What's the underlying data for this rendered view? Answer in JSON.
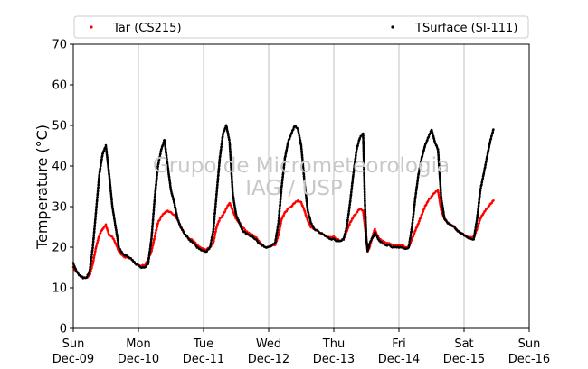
{
  "chart_data": {
    "type": "scatter",
    "ylabel": "Temperature (°C)",
    "xlabel": "",
    "ylim": [
      0,
      70
    ],
    "yticks": [
      0,
      10,
      20,
      30,
      40,
      50,
      60,
      70
    ],
    "xlim": [
      0,
      7
    ],
    "xticks": [
      {
        "x": 0,
        "line1": "Sun",
        "line2": "Dec-09"
      },
      {
        "x": 1,
        "line1": "Mon",
        "line2": "Dec-10"
      },
      {
        "x": 2,
        "line1": "Tue",
        "line2": "Dec-11"
      },
      {
        "x": 3,
        "line1": "Wed",
        "line2": "Dec-12"
      },
      {
        "x": 4,
        "line1": "Thu",
        "line2": "Dec-13"
      },
      {
        "x": 5,
        "line1": "Fri",
        "line2": "Dec-14"
      },
      {
        "x": 6,
        "line1": "Sat",
        "line2": "Dec-15"
      },
      {
        "x": 7,
        "line1": "Sun",
        "line2": "Dec-16"
      }
    ],
    "grid": "vertical",
    "legend_position": "top",
    "watermark": [
      "Grupo de Micrometeorologia",
      "IAG / USP"
    ],
    "series": [
      {
        "name": "Tar (CS215)",
        "color": "#ff0000",
        "points": [
          [
            0.0,
            15
          ],
          [
            0.05,
            14
          ],
          [
            0.1,
            13
          ],
          [
            0.15,
            12.5
          ],
          [
            0.2,
            12.5
          ],
          [
            0.25,
            13
          ],
          [
            0.3,
            16
          ],
          [
            0.35,
            20
          ],
          [
            0.4,
            23
          ],
          [
            0.45,
            24.5
          ],
          [
            0.5,
            25.5
          ],
          [
            0.55,
            23
          ],
          [
            0.6,
            22.5
          ],
          [
            0.65,
            21
          ],
          [
            0.7,
            19
          ],
          [
            0.75,
            18
          ],
          [
            0.8,
            17.5
          ],
          [
            0.85,
            17.5
          ],
          [
            0.9,
            17
          ],
          [
            0.95,
            16
          ],
          [
            1.0,
            15.5
          ],
          [
            1.05,
            15.5
          ],
          [
            1.1,
            15.5
          ],
          [
            1.15,
            17
          ],
          [
            1.2,
            19
          ],
          [
            1.25,
            22.5
          ],
          [
            1.3,
            26
          ],
          [
            1.35,
            27.5
          ],
          [
            1.4,
            28.5
          ],
          [
            1.45,
            29
          ],
          [
            1.5,
            28.5
          ],
          [
            1.55,
            28
          ],
          [
            1.6,
            27
          ],
          [
            1.65,
            25
          ],
          [
            1.7,
            23.5
          ],
          [
            1.75,
            22.5
          ],
          [
            1.8,
            22
          ],
          [
            1.85,
            21.5
          ],
          [
            1.9,
            20.5
          ],
          [
            1.95,
            20
          ],
          [
            2.0,
            19.5
          ],
          [
            2.05,
            19.5
          ],
          [
            2.1,
            20
          ],
          [
            2.15,
            21
          ],
          [
            2.2,
            25
          ],
          [
            2.25,
            27
          ],
          [
            2.3,
            28
          ],
          [
            2.35,
            29.5
          ],
          [
            2.4,
            31
          ],
          [
            2.45,
            29
          ],
          [
            2.5,
            27
          ],
          [
            2.55,
            26
          ],
          [
            2.6,
            25
          ],
          [
            2.65,
            24
          ],
          [
            2.7,
            23.5
          ],
          [
            2.75,
            23
          ],
          [
            2.8,
            22.5
          ],
          [
            2.85,
            21.5
          ],
          [
            2.9,
            20.5
          ],
          [
            2.95,
            20
          ],
          [
            3.0,
            20
          ],
          [
            3.05,
            20.5
          ],
          [
            3.1,
            20.5
          ],
          [
            3.15,
            23
          ],
          [
            3.2,
            27
          ],
          [
            3.25,
            28.5
          ],
          [
            3.3,
            29.5
          ],
          [
            3.35,
            30
          ],
          [
            3.4,
            31
          ],
          [
            3.45,
            31.5
          ],
          [
            3.5,
            31
          ],
          [
            3.55,
            29
          ],
          [
            3.6,
            26.5
          ],
          [
            3.65,
            25
          ],
          [
            3.7,
            24.5
          ],
          [
            3.75,
            24
          ],
          [
            3.8,
            23.5
          ],
          [
            3.85,
            23
          ],
          [
            3.9,
            22.5
          ],
          [
            3.95,
            22.5
          ],
          [
            4.0,
            22.5
          ],
          [
            4.05,
            22
          ],
          [
            4.1,
            21.5
          ],
          [
            4.15,
            22
          ],
          [
            4.2,
            24
          ],
          [
            4.25,
            26
          ],
          [
            4.3,
            27.5
          ],
          [
            4.35,
            28.5
          ],
          [
            4.4,
            29.5
          ],
          [
            4.45,
            29
          ],
          [
            4.5,
            22
          ],
          [
            4.52,
            19
          ],
          [
            4.55,
            20
          ],
          [
            4.6,
            23
          ],
          [
            4.63,
            24.5
          ],
          [
            4.65,
            23.5
          ],
          [
            4.7,
            22
          ],
          [
            4.75,
            21.5
          ],
          [
            4.8,
            21
          ],
          [
            4.85,
            21
          ],
          [
            4.9,
            20.5
          ],
          [
            4.95,
            20.5
          ],
          [
            5.0,
            20.5
          ],
          [
            5.05,
            20.5
          ],
          [
            5.1,
            20
          ],
          [
            5.15,
            20
          ],
          [
            5.2,
            22
          ],
          [
            5.25,
            24
          ],
          [
            5.3,
            26
          ],
          [
            5.35,
            28
          ],
          [
            5.4,
            30
          ],
          [
            5.45,
            31.5
          ],
          [
            5.5,
            32.5
          ],
          [
            5.55,
            33.5
          ],
          [
            5.6,
            34
          ],
          [
            5.65,
            29
          ],
          [
            5.7,
            27
          ],
          [
            5.75,
            26
          ],
          [
            5.8,
            25.5
          ],
          [
            5.85,
            25
          ],
          [
            5.9,
            24
          ],
          [
            5.95,
            23.5
          ],
          [
            6.0,
            23
          ],
          [
            6.05,
            22.5
          ],
          [
            6.1,
            22.5
          ],
          [
            6.15,
            22.5
          ],
          [
            6.2,
            24.5
          ],
          [
            6.25,
            27
          ],
          [
            6.3,
            28.5
          ],
          [
            6.35,
            29.5
          ],
          [
            6.4,
            30.5
          ],
          [
            6.45,
            31.5
          ]
        ]
      },
      {
        "name": "TSurface (SI-111)",
        "color": "#000000",
        "points": [
          [
            0.0,
            16
          ],
          [
            0.05,
            14
          ],
          [
            0.1,
            13
          ],
          [
            0.15,
            12.5
          ],
          [
            0.2,
            12.5
          ],
          [
            0.25,
            14
          ],
          [
            0.3,
            20
          ],
          [
            0.35,
            29
          ],
          [
            0.4,
            38
          ],
          [
            0.45,
            43
          ],
          [
            0.5,
            45
          ],
          [
            0.55,
            38
          ],
          [
            0.6,
            30
          ],
          [
            0.65,
            25
          ],
          [
            0.7,
            20
          ],
          [
            0.75,
            18.5
          ],
          [
            0.8,
            18
          ],
          [
            0.85,
            17.5
          ],
          [
            0.9,
            17
          ],
          [
            0.95,
            16
          ],
          [
            1.0,
            15.5
          ],
          [
            1.05,
            15
          ],
          [
            1.1,
            15
          ],
          [
            1.15,
            16
          ],
          [
            1.2,
            22
          ],
          [
            1.25,
            32
          ],
          [
            1.3,
            40
          ],
          [
            1.35,
            44
          ],
          [
            1.4,
            46.5
          ],
          [
            1.45,
            40
          ],
          [
            1.5,
            34
          ],
          [
            1.55,
            31
          ],
          [
            1.6,
            27
          ],
          [
            1.65,
            25
          ],
          [
            1.7,
            23.5
          ],
          [
            1.75,
            22.5
          ],
          [
            1.8,
            21.5
          ],
          [
            1.85,
            21
          ],
          [
            1.9,
            20
          ],
          [
            1.95,
            19.5
          ],
          [
            2.0,
            19
          ],
          [
            2.05,
            19
          ],
          [
            2.1,
            20
          ],
          [
            2.15,
            24
          ],
          [
            2.2,
            33
          ],
          [
            2.25,
            42
          ],
          [
            2.3,
            48
          ],
          [
            2.35,
            50
          ],
          [
            2.4,
            46
          ],
          [
            2.45,
            33
          ],
          [
            2.5,
            28
          ],
          [
            2.55,
            26
          ],
          [
            2.6,
            24
          ],
          [
            2.65,
            23.5
          ],
          [
            2.7,
            23
          ],
          [
            2.75,
            22.5
          ],
          [
            2.8,
            22
          ],
          [
            2.85,
            21
          ],
          [
            2.9,
            20.5
          ],
          [
            2.95,
            20
          ],
          [
            3.0,
            20
          ],
          [
            3.05,
            20.5
          ],
          [
            3.1,
            21
          ],
          [
            3.15,
            26
          ],
          [
            3.2,
            35
          ],
          [
            3.25,
            42
          ],
          [
            3.3,
            46
          ],
          [
            3.35,
            48
          ],
          [
            3.4,
            50
          ],
          [
            3.45,
            49
          ],
          [
            3.5,
            45
          ],
          [
            3.55,
            36
          ],
          [
            3.6,
            29
          ],
          [
            3.65,
            26
          ],
          [
            3.7,
            24.5
          ],
          [
            3.75,
            24
          ],
          [
            3.8,
            23.5
          ],
          [
            3.85,
            23
          ],
          [
            3.9,
            22.5
          ],
          [
            3.95,
            22
          ],
          [
            4.0,
            22
          ],
          [
            4.05,
            21.5
          ],
          [
            4.1,
            21.5
          ],
          [
            4.15,
            22
          ],
          [
            4.2,
            25
          ],
          [
            4.25,
            31
          ],
          [
            4.3,
            38
          ],
          [
            4.35,
            44
          ],
          [
            4.4,
            47
          ],
          [
            4.45,
            48
          ],
          [
            4.48,
            30
          ],
          [
            4.5,
            22
          ],
          [
            4.52,
            19
          ],
          [
            4.55,
            21
          ],
          [
            4.6,
            22.5
          ],
          [
            4.63,
            23.5
          ],
          [
            4.65,
            23
          ],
          [
            4.7,
            21.5
          ],
          [
            4.75,
            21
          ],
          [
            4.8,
            20.5
          ],
          [
            4.85,
            20.5
          ],
          [
            4.9,
            20
          ],
          [
            4.95,
            20
          ],
          [
            5.0,
            20
          ],
          [
            5.05,
            20
          ],
          [
            5.1,
            19.5
          ],
          [
            5.15,
            20
          ],
          [
            5.2,
            25
          ],
          [
            5.25,
            32
          ],
          [
            5.3,
            38
          ],
          [
            5.35,
            42
          ],
          [
            5.4,
            45
          ],
          [
            5.45,
            47
          ],
          [
            5.5,
            49
          ],
          [
            5.55,
            46
          ],
          [
            5.6,
            44
          ],
          [
            5.65,
            32
          ],
          [
            5.7,
            27
          ],
          [
            5.75,
            26
          ],
          [
            5.8,
            25.5
          ],
          [
            5.85,
            25
          ],
          [
            5.9,
            24
          ],
          [
            5.95,
            23.5
          ],
          [
            6.0,
            23
          ],
          [
            6.05,
            22.5
          ],
          [
            6.1,
            22
          ],
          [
            6.15,
            22
          ],
          [
            6.2,
            27
          ],
          [
            6.25,
            34
          ],
          [
            6.3,
            38
          ],
          [
            6.35,
            42
          ],
          [
            6.4,
            46
          ],
          [
            6.45,
            49
          ]
        ]
      }
    ]
  }
}
